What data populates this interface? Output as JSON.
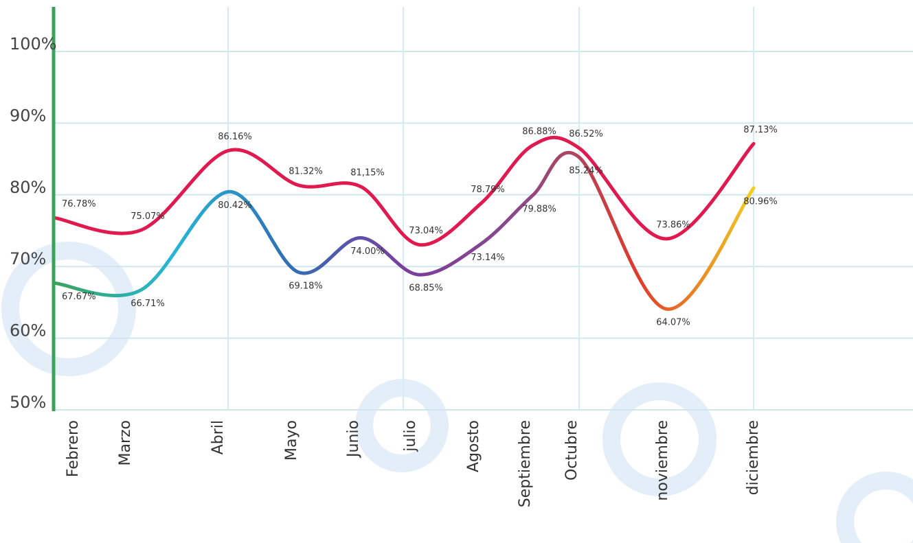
{
  "chart_data": {
    "type": "line",
    "categories": [
      "Febrero",
      "Marzo",
      "Abril",
      "Mayo",
      "Junio",
      "julio",
      "Agosto",
      "Septiembre",
      "Octubre",
      "noviembre",
      "diciembre"
    ],
    "series": [
      {
        "color": "#e0194f",
        "values": [
          76.78,
          75.07,
          86.16,
          81.32,
          81.15,
          73.04,
          78.79,
          86.88,
          86.52,
          73.86,
          87.13
        ],
        "value_labels": [
          "76.78%",
          "75.07%",
          "86.16%",
          "81.32%",
          "81,15%",
          "73.04%",
          "78.79%",
          "86.88%",
          "86.52%",
          "73.86%",
          "87.13%"
        ]
      },
      {
        "color": "#2a9fd6",
        "gradient": [
          "#3aa35a",
          "#27b7d6",
          "#2f6fb5",
          "#7a3d9e",
          "#8a4a8a",
          "#e03a2a",
          "#f0d020"
        ],
        "values": [
          67.67,
          66.71,
          80.42,
          69.18,
          74.0,
          68.85,
          73.14,
          79.88,
          85.24,
          64.07,
          80.96
        ],
        "value_labels": [
          "67.67%",
          "66.71%",
          "80.42%",
          "69.18%",
          "74.00%",
          "68.85%",
          "73.14%",
          "79.88%",
          "85.24%",
          "64.07%",
          "80.96%"
        ]
      }
    ],
    "ylim": [
      50,
      105
    ],
    "yticks": [
      {
        "value": 50,
        "label": "50%"
      },
      {
        "value": 60,
        "label": "60%"
      },
      {
        "value": 70,
        "label": "70%"
      },
      {
        "value": 80,
        "label": "80%"
      },
      {
        "value": 90,
        "label": "90%"
      },
      {
        "value": 100,
        "label": "100%"
      }
    ],
    "grid": true
  }
}
